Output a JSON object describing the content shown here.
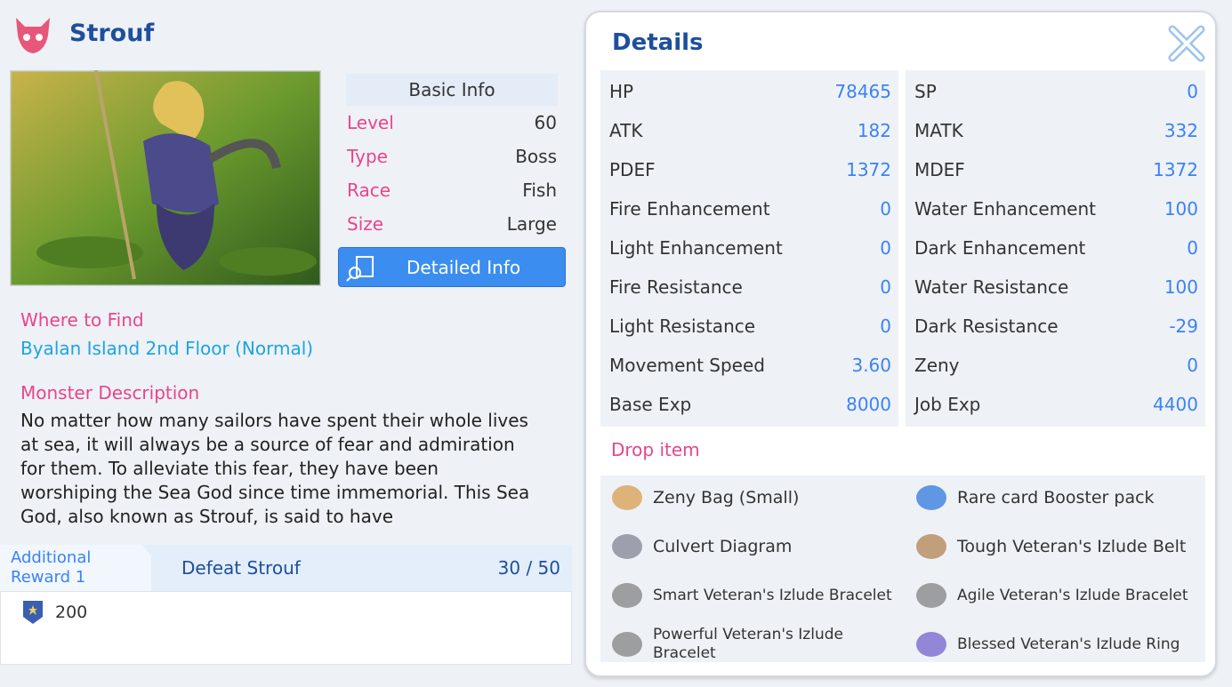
{
  "monster": {
    "name": "Strouf"
  },
  "basic_info": {
    "title": "Basic Info",
    "rows": [
      [
        "Level",
        60
      ],
      [
        "Type",
        "Boss"
      ],
      [
        "Race",
        "Fish"
      ],
      [
        "Size",
        "Large"
      ]
    ],
    "button": "Detailed Info"
  },
  "where_to_find": {
    "label": "Where to Find",
    "value": "Byalan Island 2nd Floor (Normal)"
  },
  "description": {
    "label": "Monster Description",
    "text": "No matter how many sailors have spent their whole lives at sea, it will always be a source of fear and admiration for them. To alleviate this fear, they have been worshiping the Sea God since time immemorial. This Sea God, also known as Strouf, is said to have"
  },
  "reward": {
    "label": "Additional Reward 1",
    "task": "Defeat Strouf",
    "progress": "30 / 50",
    "amount": 200
  },
  "details": {
    "title": "Details",
    "stats_left": [
      [
        "HP",
        78465
      ],
      [
        "ATK",
        182
      ],
      [
        "PDEF",
        1372
      ],
      [
        "Fire Enhancement",
        0
      ],
      [
        "Light Enhancement",
        0
      ],
      [
        "Fire Resistance",
        0
      ],
      [
        "Light Resistance",
        0
      ],
      [
        "Movement Speed",
        "3.60"
      ],
      [
        "Base Exp",
        8000
      ]
    ],
    "stats_right": [
      [
        "SP",
        0
      ],
      [
        "MATK",
        332
      ],
      [
        "MDEF",
        1372
      ],
      [
        "Water Enhancement",
        100
      ],
      [
        "Dark Enhancement",
        0
      ],
      [
        "Water Resistance",
        100
      ],
      [
        "Dark Resistance",
        -29
      ],
      [
        "Zeny",
        0
      ],
      [
        "Job Exp",
        4400
      ]
    ],
    "drop_title": "Drop item",
    "drops": [
      "Zeny Bag (Small)",
      "Rare card Booster pack",
      "Culvert Diagram",
      "Tough Veteran's Izlude Belt",
      "Smart Veteran's Izlude Bracelet",
      "Agile Veteran's Izlude Bracelet",
      "Powerful Veteran's Izlude Bracelet",
      "Blessed Veteran's Izlude Ring"
    ]
  }
}
